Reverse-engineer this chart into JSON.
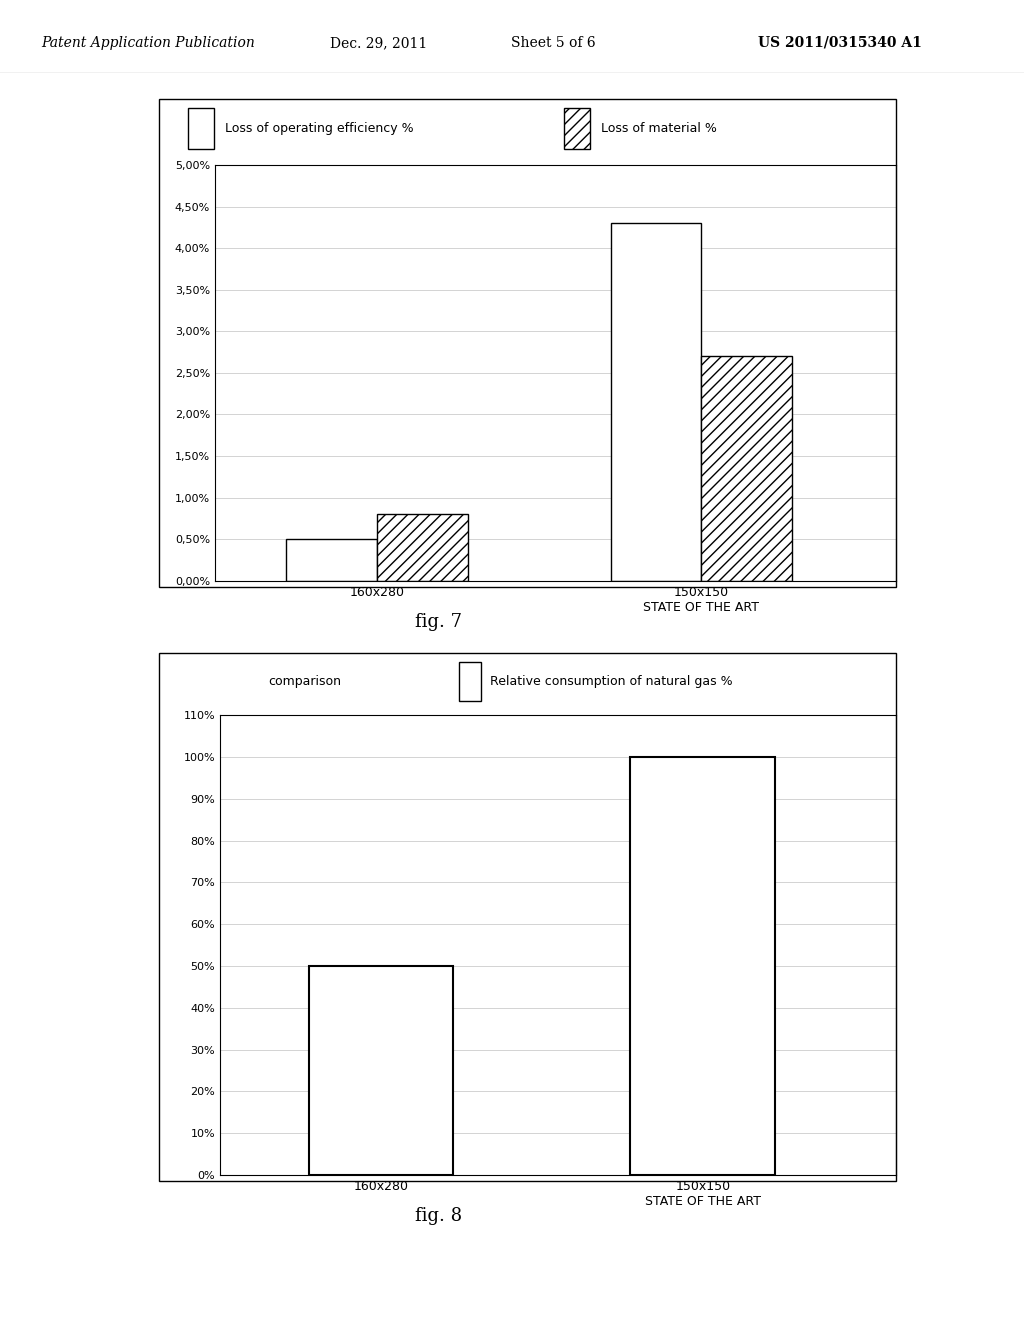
{
  "fig7": {
    "legend1_label": "Loss of operating efficiency %",
    "legend2_label": "Loss of material %",
    "categories": [
      "160x280",
      "150x150\nSTATE OF THE ART"
    ],
    "bar1_values": [
      0.005,
      0.043
    ],
    "bar2_values": [
      0.008,
      0.027
    ],
    "ylim_max": 0.05,
    "yticks": [
      0.0,
      0.005,
      0.01,
      0.015,
      0.02,
      0.025,
      0.03,
      0.035,
      0.04,
      0.045,
      0.05
    ],
    "ytick_labels": [
      "0,00%",
      "0,50%",
      "1,00%",
      "1,50%",
      "2,00%",
      "2,50%",
      "3,00%",
      "3,50%",
      "4,00%",
      "4,50%",
      "5,00%"
    ],
    "bar_width": 0.28,
    "bar_gap": 0.3,
    "bar1_color": "white",
    "bar2_hatch": "///",
    "bar2_color": "white",
    "bar_edgecolor": "black",
    "fig_caption": "fig. 7",
    "x_positions": [
      0.0,
      1.0
    ],
    "xlim": [
      -0.5,
      1.6
    ]
  },
  "fig8": {
    "title": "comparison",
    "legend1_label": "Relative consumption of natural gas %",
    "categories": [
      "160x280",
      "150x150\nSTATE OF THE ART"
    ],
    "bar1_values": [
      50,
      100
    ],
    "ylim_max": 110,
    "yticks": [
      0,
      10,
      20,
      30,
      40,
      50,
      60,
      70,
      80,
      90,
      100,
      110
    ],
    "ytick_labels": [
      "0%",
      "10%",
      "20%",
      "30%",
      "40%",
      "50%",
      "60%",
      "70%",
      "80%",
      "90%",
      "100%",
      "110%"
    ],
    "bar_width": 0.45,
    "bar1_color": "white",
    "bar_edgecolor": "black",
    "fig_caption": "fig. 8",
    "x_positions": [
      0.0,
      1.0
    ],
    "xlim": [
      -0.5,
      1.6
    ]
  },
  "header_left": "Patent Application Publication",
  "header_date": "Dec. 29, 2011",
  "header_sheet": "Sheet 5 of 6",
  "header_right": "US 2011/0315340 A1",
  "bg_color": "white"
}
